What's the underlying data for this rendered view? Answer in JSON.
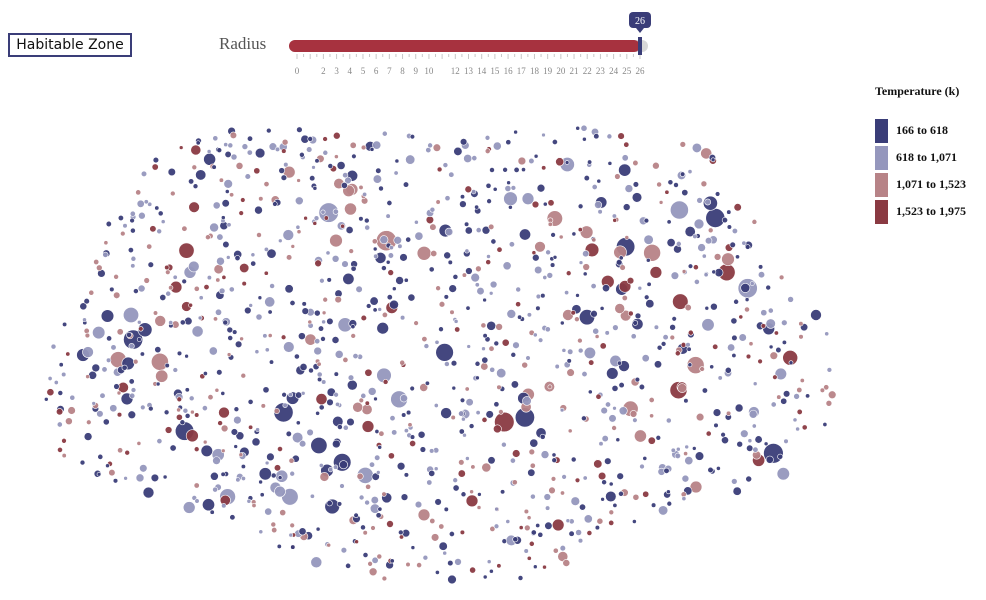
{
  "controls": {
    "habitable_zone_label": "Habitable Zone",
    "radius_label": "Radius",
    "slider": {
      "min": 0,
      "max": 26,
      "value": 26,
      "value_label": "26",
      "tick_labels": [
        "0",
        "2",
        "3",
        "4",
        "5",
        "6",
        "7",
        "8",
        "9",
        "10",
        "12",
        "13",
        "14",
        "15",
        "16",
        "17",
        "18",
        "19",
        "20",
        "21",
        "22",
        "23",
        "24",
        "25",
        "26"
      ],
      "fill_color": "#a7323f",
      "handle_color": "#3a3d78"
    }
  },
  "chart_data": {
    "type": "scatter",
    "title": "",
    "description_fields": "t-SNE style cluster of exoplanets; bubble size = radius, color = temperature bin",
    "legend": {
      "title": "Temperature (k)",
      "items": [
        {
          "label": "166 to 618",
          "color": "#3a3d78"
        },
        {
          "label": "618 to 1,071",
          "color": "#9597bd"
        },
        {
          "label": "1,071 to 1,523",
          "color": "#b78387"
        },
        {
          "label": "1,523 to 1,975",
          "color": "#8a3a42"
        }
      ]
    },
    "x_range": [
      0,
      100
    ],
    "y_range": [
      0,
      100
    ],
    "radius_range": [
      0,
      26
    ],
    "point_count": 1300,
    "seed": 20240517,
    "highlight_points": [
      {
        "x": 6,
        "y": 49,
        "r": 8,
        "bin": 1
      },
      {
        "x": 43,
        "y": 44,
        "r": 12,
        "bin": 1
      },
      {
        "x": 41,
        "y": 33,
        "r": 9,
        "bin": 3
      },
      {
        "x": 37,
        "y": 73,
        "r": 10,
        "bin": 2
      },
      {
        "x": 69,
        "y": 71,
        "r": 11,
        "bin": 3
      },
      {
        "x": 48,
        "y": 14,
        "r": 9,
        "bin": 2
      },
      {
        "x": 54,
        "y": 17,
        "r": 9,
        "bin": 3
      },
      {
        "x": 73,
        "y": 46,
        "r": 8,
        "bin": 0
      },
      {
        "x": 97,
        "y": 57,
        "r": 8,
        "bin": 0
      },
      {
        "x": 86,
        "y": 69,
        "r": 10,
        "bin": 2
      },
      {
        "x": 23,
        "y": 36,
        "r": 8,
        "bin": 3
      },
      {
        "x": 17,
        "y": 63,
        "r": 9,
        "bin": 3
      },
      {
        "x": 82,
        "y": 20,
        "r": 9,
        "bin": 2
      },
      {
        "x": 66,
        "y": 57,
        "r": 8,
        "bin": 2
      },
      {
        "x": 39,
        "y": 84,
        "r": 9,
        "bin": 2
      },
      {
        "x": 61,
        "y": 82,
        "r": 9,
        "bin": 1
      },
      {
        "x": 30,
        "y": 19,
        "r": 8,
        "bin": 1
      }
    ]
  }
}
